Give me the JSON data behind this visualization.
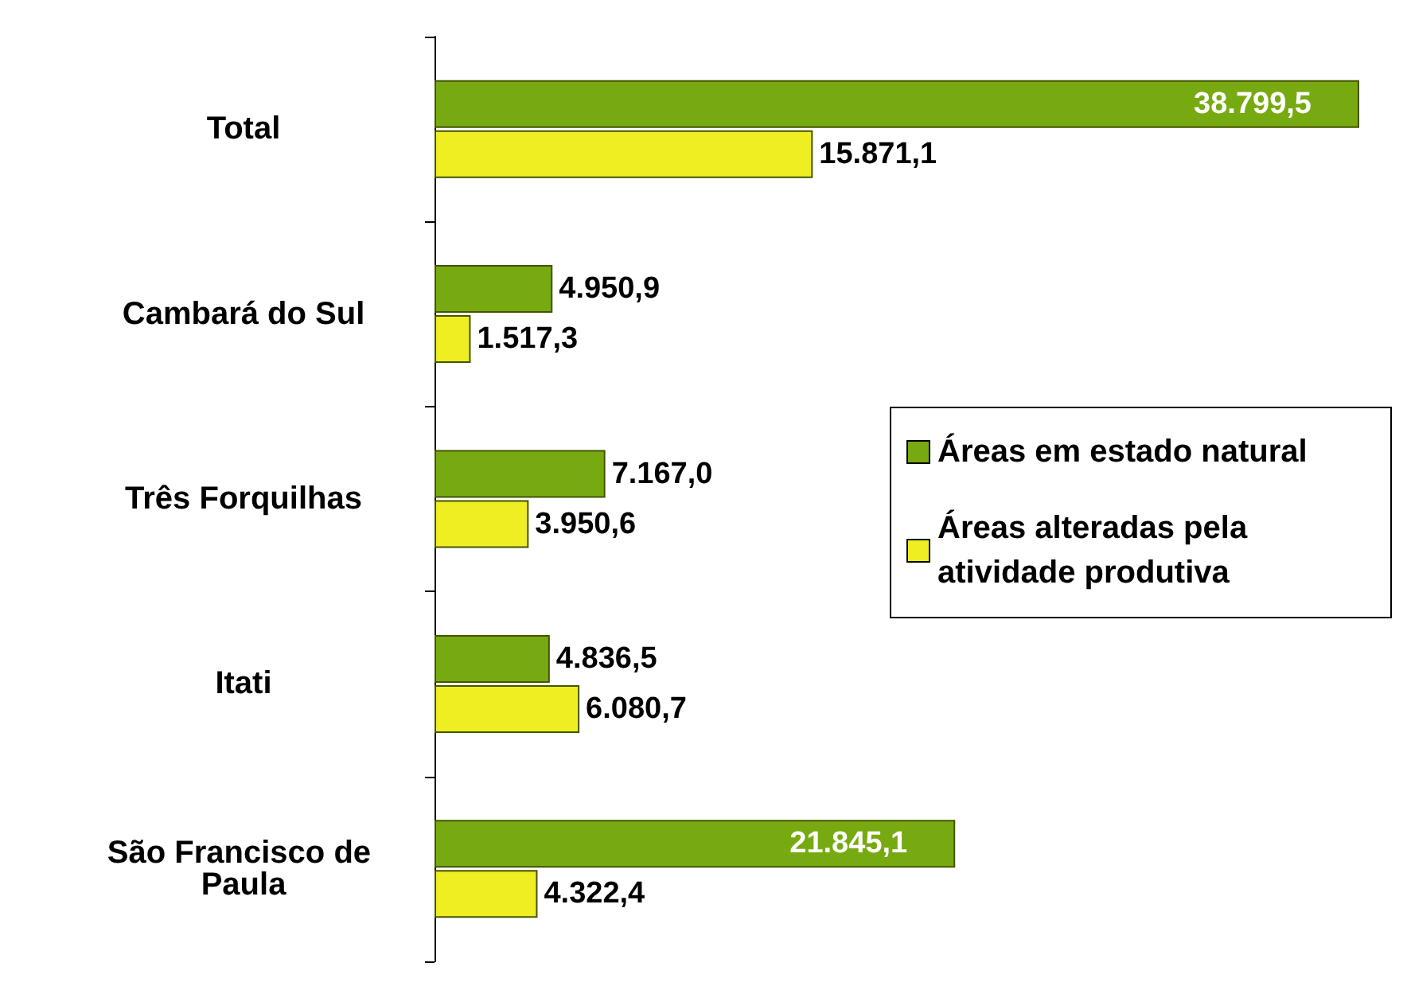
{
  "chart_data": {
    "type": "bar",
    "orientation": "horizontal",
    "categories": [
      "Total",
      "Cambará do Sul",
      "Três Forquilhas",
      "Itati",
      "São Francisco de Paula"
    ],
    "series": [
      {
        "name": "Áreas em estado natural",
        "color": "#77aa11",
        "values": [
          38799.5,
          4950.9,
          7167.0,
          4836.5,
          21845.1
        ],
        "value_labels": [
          "38.799,5",
          "4.950,9",
          "7.167,0",
          "4.836,5",
          "21.845,1"
        ]
      },
      {
        "name": "Áreas alteradas pela atividade produtiva",
        "color": "#eeee22",
        "values": [
          15871.1,
          1517.3,
          3950.6,
          6080.7,
          4322.4
        ],
        "value_labels": [
          "15.871,1",
          "1.517,3",
          "3.950,6",
          "6.080,7",
          "4.322,4"
        ]
      }
    ],
    "tick_labels": "y",
    "legend": "right",
    "grid": false
  }
}
